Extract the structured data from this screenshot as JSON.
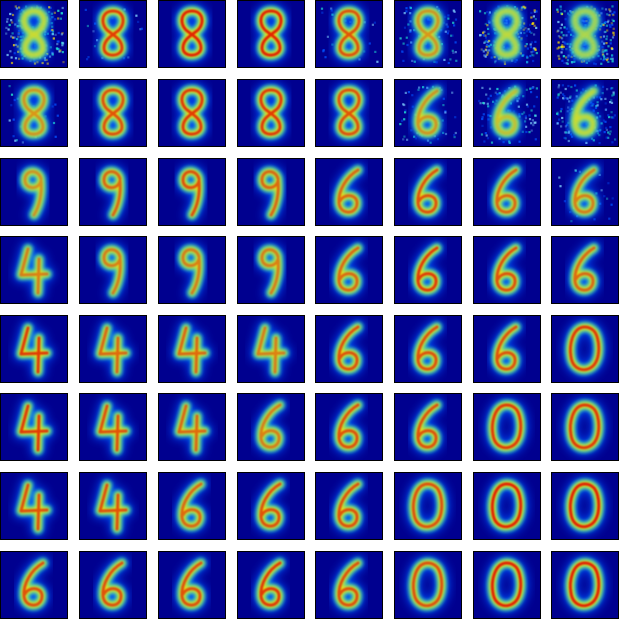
{
  "grid": {
    "rows": 8,
    "cols": 8,
    "colormap": "jet",
    "colors": {
      "background": "#00008f",
      "low": "#0050ff",
      "mid": "#20e0d0",
      "high": "#ffe000",
      "peak": "#e01000",
      "noise": "#7fd0ff"
    },
    "cells": [
      [
        {
          "d": "8",
          "n": 0.7,
          "s": 0.55
        },
        {
          "d": "8",
          "n": 0.1,
          "s": 0.9
        },
        {
          "d": "8",
          "n": 0.05,
          "s": 0.95
        },
        {
          "d": "8",
          "n": 0.05,
          "s": 0.95
        },
        {
          "d": "8",
          "n": 0.1,
          "s": 0.85
        },
        {
          "d": "8",
          "n": 0.35,
          "s": 0.7
        },
        {
          "d": "8",
          "n": 0.75,
          "s": 0.45
        },
        {
          "d": "8",
          "n": 0.95,
          "s": 0.3
        }
      ],
      [
        {
          "d": "8",
          "n": 0.1,
          "s": 0.7
        },
        {
          "d": "8",
          "n": 0.05,
          "s": 0.85
        },
        {
          "d": "8",
          "n": 0.03,
          "s": 0.9
        },
        {
          "d": "8",
          "n": 0.03,
          "s": 0.9
        },
        {
          "d": "8",
          "n": 0.05,
          "s": 0.85
        },
        {
          "d": "6",
          "n": 0.2,
          "s": 0.7
        },
        {
          "d": "6",
          "n": 0.4,
          "s": 0.6
        },
        {
          "d": "6",
          "n": 0.6,
          "s": 0.55
        }
      ],
      [
        {
          "d": "9",
          "n": 0.05,
          "s": 0.7
        },
        {
          "d": "9",
          "n": 0.03,
          "s": 0.8
        },
        {
          "d": "9",
          "n": 0.03,
          "s": 0.85
        },
        {
          "d": "9",
          "n": 0.03,
          "s": 0.8
        },
        {
          "d": "6",
          "n": 0.05,
          "s": 0.8
        },
        {
          "d": "6",
          "n": 0.05,
          "s": 0.85
        },
        {
          "d": "6",
          "n": 0.05,
          "s": 0.8
        },
        {
          "d": "6",
          "n": 0.1,
          "s": 0.75
        }
      ],
      [
        {
          "d": "4",
          "n": 0.03,
          "s": 0.75
        },
        {
          "d": "9",
          "n": 0.03,
          "s": 0.75
        },
        {
          "d": "9",
          "n": 0.03,
          "s": 0.75
        },
        {
          "d": "9",
          "n": 0.03,
          "s": 0.75
        },
        {
          "d": "6",
          "n": 0.03,
          "s": 0.8
        },
        {
          "d": "6",
          "n": 0.03,
          "s": 0.9
        },
        {
          "d": "6",
          "n": 0.03,
          "s": 0.85
        },
        {
          "d": "6",
          "n": 0.03,
          "s": 0.8
        }
      ],
      [
        {
          "d": "4",
          "n": 0.03,
          "s": 0.9
        },
        {
          "d": "4",
          "n": 0.03,
          "s": 0.8
        },
        {
          "d": "4",
          "n": 0.03,
          "s": 0.8
        },
        {
          "d": "4",
          "n": 0.03,
          "s": 0.75
        },
        {
          "d": "6",
          "n": 0.03,
          "s": 0.85
        },
        {
          "d": "6",
          "n": 0.03,
          "s": 0.85
        },
        {
          "d": "6",
          "n": 0.03,
          "s": 0.85
        },
        {
          "d": "0",
          "n": 0.03,
          "s": 0.9
        }
      ],
      [
        {
          "d": "4",
          "n": 0.03,
          "s": 0.9
        },
        {
          "d": "4",
          "n": 0.03,
          "s": 0.85
        },
        {
          "d": "4",
          "n": 0.03,
          "s": 0.8
        },
        {
          "d": "6",
          "n": 0.03,
          "s": 0.75
        },
        {
          "d": "6",
          "n": 0.03,
          "s": 0.85
        },
        {
          "d": "6",
          "n": 0.03,
          "s": 0.85
        },
        {
          "d": "0",
          "n": 0.03,
          "s": 0.9
        },
        {
          "d": "0",
          "n": 0.03,
          "s": 0.9
        }
      ],
      [
        {
          "d": "4",
          "n": 0.03,
          "s": 0.85
        },
        {
          "d": "4",
          "n": 0.03,
          "s": 0.85
        },
        {
          "d": "6",
          "n": 0.03,
          "s": 0.8
        },
        {
          "d": "6",
          "n": 0.03,
          "s": 0.85
        },
        {
          "d": "6",
          "n": 0.03,
          "s": 0.85
        },
        {
          "d": "0",
          "n": 0.03,
          "s": 0.85
        },
        {
          "d": "0",
          "n": 0.03,
          "s": 0.95
        },
        {
          "d": "0",
          "n": 0.03,
          "s": 0.95
        }
      ],
      [
        {
          "d": "6",
          "n": 0.03,
          "s": 0.85
        },
        {
          "d": "6",
          "n": 0.03,
          "s": 0.85
        },
        {
          "d": "6",
          "n": 0.03,
          "s": 0.85
        },
        {
          "d": "6",
          "n": 0.03,
          "s": 0.9
        },
        {
          "d": "6",
          "n": 0.03,
          "s": 0.85
        },
        {
          "d": "0",
          "n": 0.03,
          "s": 0.85
        },
        {
          "d": "0",
          "n": 0.03,
          "s": 0.95
        },
        {
          "d": "0",
          "n": 0.03,
          "s": 0.95
        }
      ]
    ]
  }
}
